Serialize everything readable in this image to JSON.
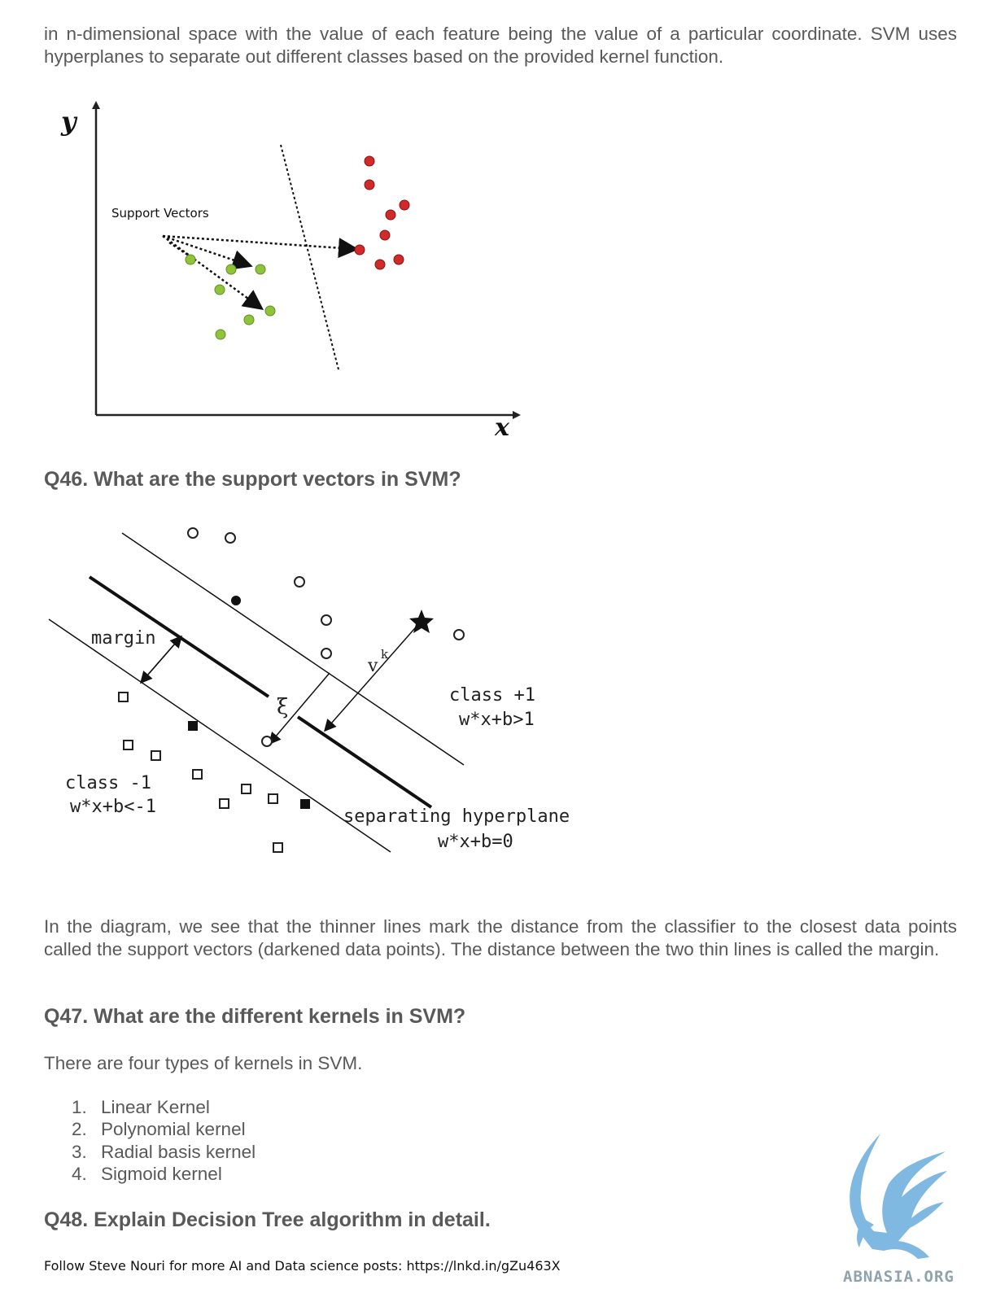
{
  "intro_text": "in n-dimensional space with the value of each feature being the value of a particular coordinate. SVM uses hyperplanes to separate out different classes based on the provided kernel function.",
  "figure1": {
    "y_label": "y",
    "x_label": "x",
    "annotation": "Support Vectors",
    "colors": {
      "green": "#8fc43a",
      "red": "#d12a2a"
    }
  },
  "q46": {
    "heading": "Q46. What are the support vectors in SVM?",
    "figure": {
      "margin_label": "margin",
      "xi_label": "ξ",
      "v_label": "v",
      "k_label": "k",
      "class_pos_label": "class +1",
      "class_pos_eq": "w*x+b>1",
      "class_neg_label": "class -1",
      "class_neg_eq": "w*x+b<-1",
      "hyperplane_label": "separating hyperplane",
      "hyperplane_eq": "w*x+b=0"
    },
    "description": "In the diagram, we see that the thinner lines mark the distance from the classifier to the closest data points called the support vectors (darkened data points). The distance between the two thin lines is called the margin."
  },
  "q47": {
    "heading": "Q47. What are the different kernels in SVM?",
    "intro": "There are four types of kernels in SVM.",
    "items": [
      {
        "num": "1.",
        "label": "Linear Kernel"
      },
      {
        "num": "2.",
        "label": "Polynomial kernel"
      },
      {
        "num": "3.",
        "label": "Radial basis kernel"
      },
      {
        "num": "4.",
        "label": "Sigmoid kernel"
      }
    ]
  },
  "q48": {
    "heading": "Q48. Explain Decision Tree algorithm in detail."
  },
  "logo": {
    "text": "ABNASIA.ORG",
    "color": "#7fb8e0"
  },
  "footer": "Follow Steve Nouri for more AI and Data science posts: https://lnkd.in/gZu463X"
}
